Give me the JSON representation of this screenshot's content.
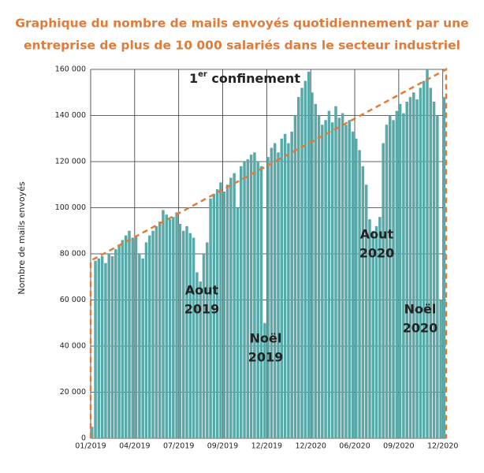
{
  "chart_data": {
    "type": "bar",
    "title": [
      "Graphique du nombre de mails envoyés quotidiennement par une",
      "entreprise de plus de 10 000 salariés dans le secteur industriel"
    ],
    "y_label": "Nombre de mails envoyés",
    "color": "#5aa9a9",
    "grid": true,
    "x": [
      0,
      1,
      2,
      3,
      4,
      5,
      6,
      7,
      8,
      9,
      10,
      11,
      12,
      13,
      14,
      15,
      16,
      17,
      18,
      19,
      20,
      21,
      22,
      23,
      24,
      25,
      26,
      27,
      28,
      29,
      30,
      31,
      32,
      33,
      34,
      35,
      36,
      37,
      38,
      39,
      40,
      41,
      42,
      43,
      44,
      45,
      46,
      47,
      48,
      49,
      50,
      51,
      52,
      53,
      54,
      55,
      56,
      57,
      58,
      59,
      60,
      61,
      62,
      63,
      64,
      65,
      66,
      67,
      68,
      69,
      70,
      71,
      72,
      73,
      74,
      75,
      76,
      77,
      78,
      79,
      80,
      81,
      82,
      83,
      84,
      85,
      86,
      87,
      88,
      89,
      90,
      91,
      92,
      93,
      94,
      95,
      96,
      97,
      98,
      99,
      100,
      101,
      102,
      103,
      104
    ],
    "values": [
      5000,
      77000,
      78000,
      79000,
      76000,
      80000,
      79000,
      82000,
      84000,
      86000,
      88000,
      90000,
      87000,
      88000,
      80000,
      78000,
      85000,
      88000,
      90000,
      92000,
      94000,
      99000,
      97000,
      95000,
      96000,
      98000,
      93000,
      90000,
      92000,
      89000,
      87000,
      72000,
      68000,
      80000,
      85000,
      104000,
      106000,
      108000,
      111000,
      107000,
      110000,
      113000,
      115000,
      100000,
      118000,
      120000,
      121000,
      123000,
      124000,
      120000,
      118000,
      50000,
      122000,
      126000,
      128000,
      124000,
      130000,
      132000,
      128000,
      133000,
      140000,
      148000,
      152000,
      155000,
      159000,
      150000,
      145000,
      140000,
      136000,
      138000,
      142000,
      137000,
      144000,
      139000,
      141000,
      136000,
      138000,
      133000,
      130000,
      125000,
      118000,
      110000,
      95000,
      90000,
      92000,
      96000,
      128000,
      136000,
      140000,
      138000,
      142000,
      145000,
      141000,
      146000,
      148000,
      150000,
      147000,
      152000,
      155000,
      160000,
      152000,
      146000,
      140000,
      60000,
      148000
    ],
    "xlim": [
      0,
      105
    ],
    "xticks": [
      {
        "value": 0,
        "label": "01/2019"
      },
      {
        "value": 13,
        "label": "04/2019"
      },
      {
        "value": 26,
        "label": "07/2019"
      },
      {
        "value": 39,
        "label": "09/2019"
      },
      {
        "value": 52,
        "label": "12/2019"
      },
      {
        "value": 65,
        "label": "12/2020"
      },
      {
        "value": 78,
        "label": "06/2020"
      },
      {
        "value": 91,
        "label": "09/2020"
      },
      {
        "value": 104,
        "label": "12/2020"
      }
    ],
    "ylim": [
      0,
      160000
    ],
    "yticks": [
      0,
      {
        "value": 20000,
        "label": "20 000"
      },
      {
        "value": 40000,
        "label": "40 000"
      },
      {
        "value": 60000,
        "label": "60 000"
      },
      {
        "value": 80000,
        "label": "80 000"
      },
      {
        "value": 100000,
        "label": "100 000"
      },
      {
        "value": 120000,
        "label": "120 000"
      },
      {
        "value": 140000,
        "label": "140 000"
      },
      {
        "value": 160000,
        "label": "160 000"
      }
    ],
    "trend_line": {
      "values": [
        77000,
        160000
      ],
      "color": "#e07b39"
    },
    "annotations": {
      "confinement": [
        "1",
        "er",
        " confinement"
      ],
      "aout_2019": [
        "Aout",
        "2019"
      ],
      "noel_2019": [
        "Noël",
        "2019"
      ],
      "aout_2020": [
        "Aout",
        "2020"
      ],
      "noel_2020": [
        "Noël",
        "2020"
      ]
    }
  }
}
